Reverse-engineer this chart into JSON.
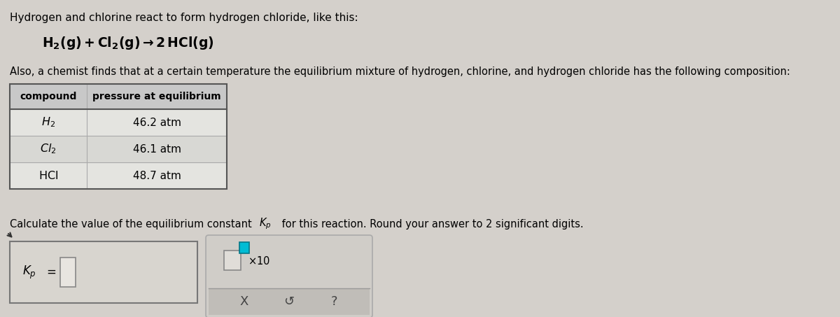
{
  "bg_color": "#d4d0cb",
  "white_bg": "#f0eeeb",
  "text_color": "#000000",
  "title_line": "Hydrogen and chlorine react to form hydrogen chloride, like this:",
  "equation_text": "H₂(g) + Cl₂(g) → 2 HCl(g)",
  "also_line": "Also, a chemist finds that at a certain temperature the equilibrium mixture of hydrogen, chlorine, and hydrogen chloride has the following composition:",
  "table_header": [
    "compound",
    "pressure at equilibrium"
  ],
  "table_rows": [
    [
      "H₂",
      "46.2 atm"
    ],
    [
      "Cl₂",
      "46.1 atm"
    ],
    [
      "HCl",
      "48.7 atm"
    ]
  ],
  "calc_prefix": "Calculate the value of the equilibrium constant ",
  "calc_suffix": " for this reaction. Round your answer to 2 significant digits.",
  "kp_text": "$K_p$",
  "buttons": [
    "X",
    "↺",
    "?"
  ],
  "teal_color": "#00bcd4",
  "box_border": "#888888",
  "table_header_bg": "#c8c8c8",
  "table_row_bg1": "#e4e4e0",
  "table_row_bg2": "#d8d8d4",
  "ans_box_bg": "#d8d5cf",
  "ans_box_border": "#777777",
  "input_box_bg": "#e8e5e0",
  "x10_panel_bg": "#d0cdc8",
  "x10_panel_border": "#aaaaaa",
  "btn_bar_bg": "#c0bdb8",
  "btn_bar_border": "#999999",
  "arrow_color": "#333333"
}
